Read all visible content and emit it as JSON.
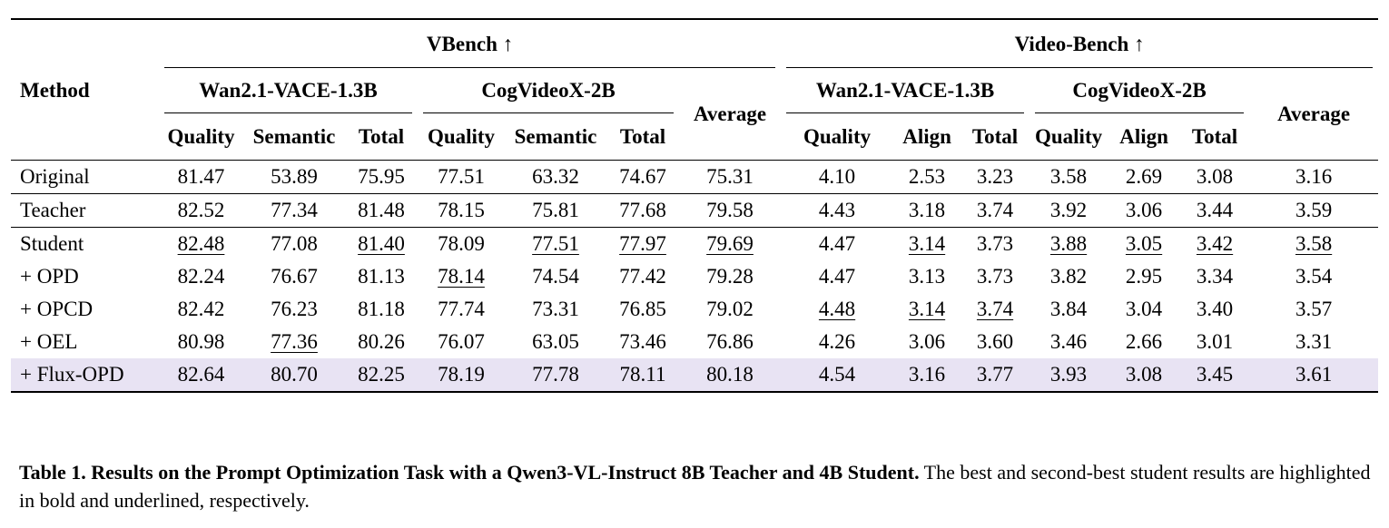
{
  "table": {
    "method_header": "Method",
    "groups": [
      {
        "title": "VBench ↑",
        "models": [
          {
            "name": "Wan2.1-VACE-1.3B",
            "metrics": [
              "Quality",
              "Semantic",
              "Total"
            ]
          },
          {
            "name": "CogVideoX-2B",
            "metrics": [
              "Quality",
              "Semantic",
              "Total"
            ]
          }
        ],
        "average_label": "Average"
      },
      {
        "title": "Video-Bench ↑",
        "models": [
          {
            "name": "Wan2.1-VACE-1.3B",
            "metrics": [
              "Quality",
              "Align",
              "Total"
            ]
          },
          {
            "name": "CogVideoX-2B",
            "metrics": [
              "Quality",
              "Align",
              "Total"
            ]
          }
        ],
        "average_label": "Average"
      }
    ],
    "rows": [
      {
        "method": "Original",
        "group_start": true,
        "values": [
          "81.47",
          "53.89",
          "75.95",
          "77.51",
          "63.32",
          "74.67",
          "75.31",
          "4.10",
          "2.53",
          "3.23",
          "3.58",
          "2.69",
          "3.08",
          "3.16"
        ],
        "styles": [
          "",
          "",
          "",
          "",
          "",
          "",
          "",
          "",
          "",
          "",
          "",
          "",
          "",
          ""
        ]
      },
      {
        "method": "Teacher",
        "group_start": true,
        "values": [
          "82.52",
          "77.34",
          "81.48",
          "78.15",
          "75.81",
          "77.68",
          "79.58",
          "4.43",
          "3.18",
          "3.74",
          "3.92",
          "3.06",
          "3.44",
          "3.59"
        ],
        "styles": [
          "",
          "",
          "",
          "",
          "",
          "",
          "",
          "",
          "",
          "",
          "",
          "",
          "",
          ""
        ]
      },
      {
        "method": "Student",
        "group_start": true,
        "values": [
          "82.48",
          "77.08",
          "81.40",
          "78.09",
          "77.51",
          "77.97",
          "79.69",
          "4.47",
          "3.14",
          "3.73",
          "3.88",
          "3.05",
          "3.42",
          "3.58"
        ],
        "styles": [
          "u",
          "",
          "u",
          "",
          "u",
          "u",
          "u",
          "",
          "u",
          "",
          "u",
          "u",
          "u",
          "u"
        ]
      },
      {
        "method": "+ OPD",
        "values": [
          "82.24",
          "76.67",
          "81.13",
          "78.14",
          "74.54",
          "77.42",
          "79.28",
          "4.47",
          "3.13",
          "3.73",
          "3.82",
          "2.95",
          "3.34",
          "3.54"
        ],
        "styles": [
          "",
          "",
          "",
          "u",
          "",
          "",
          "",
          "",
          "",
          "",
          "",
          "",
          "",
          ""
        ]
      },
      {
        "method": "+ OPCD",
        "values": [
          "82.42",
          "76.23",
          "81.18",
          "77.74",
          "73.31",
          "76.85",
          "79.02",
          "4.48",
          "3.14",
          "3.74",
          "3.84",
          "3.04",
          "3.40",
          "3.57"
        ],
        "styles": [
          "",
          "",
          "",
          "",
          "",
          "",
          "",
          "u",
          "u",
          "u",
          "",
          "",
          "",
          ""
        ]
      },
      {
        "method": "+ OEL",
        "values": [
          "80.98",
          "77.36",
          "80.26",
          "76.07",
          "63.05",
          "73.46",
          "76.86",
          "4.26",
          "3.06",
          "3.60",
          "3.46",
          "2.66",
          "3.01",
          "3.31"
        ],
        "styles": [
          "",
          "u",
          "",
          "",
          "",
          "",
          "",
          "",
          "",
          "",
          "",
          "",
          "",
          ""
        ]
      },
      {
        "method": "+ Flux-OPD",
        "highlight": true,
        "values": [
          "82.64",
          "80.70",
          "82.25",
          "78.19",
          "77.78",
          "78.11",
          "80.18",
          "4.54",
          "3.16",
          "3.77",
          "3.93",
          "3.08",
          "3.45",
          "3.61"
        ],
        "styles": [
          "b",
          "b",
          "b",
          "b",
          "b",
          "b",
          "b",
          "b",
          "b",
          "b",
          "b",
          "b",
          "b",
          "b"
        ]
      }
    ],
    "highlight_color": "#e8e3f3"
  },
  "caption": {
    "lead": "Table 1. Results on the Prompt Optimization Task with a Qwen3-VL-Instruct 8B Teacher and 4B Student.",
    "text": " The best and second-best student results are highlighted in bold and underlined, respectively."
  }
}
